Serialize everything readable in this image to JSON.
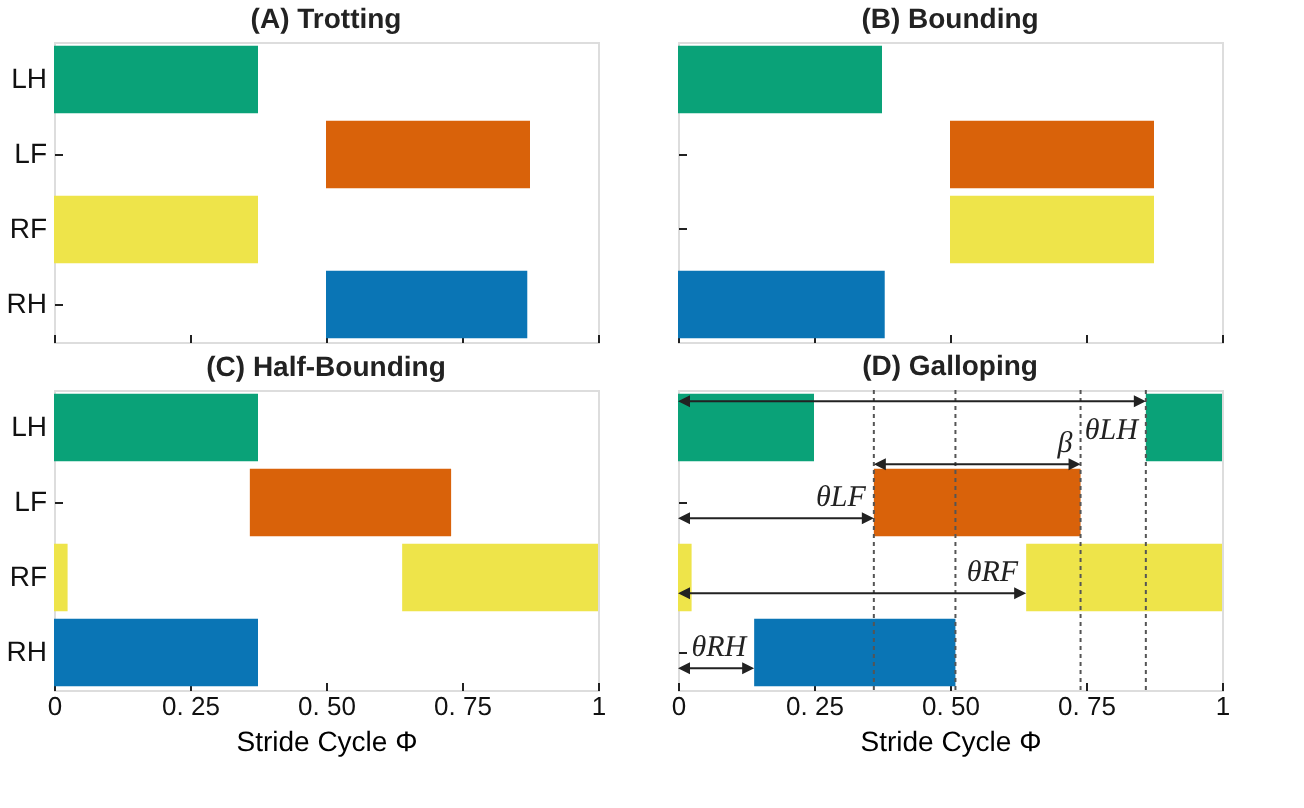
{
  "chart_data": [
    {
      "type": "bar",
      "title": "(A) Trotting",
      "orientation": "horizontal",
      "categories": [
        "LH",
        "LF",
        "RF",
        "RH"
      ],
      "xlim": [
        0,
        1
      ],
      "xticks": [
        0,
        {
          "value": 0.25,
          "label": "0. 25"
        },
        {
          "value": 0.5,
          "label": "0. 50"
        },
        {
          "value": 0.75,
          "label": "0. 75"
        },
        1
      ],
      "tick_labels": "y",
      "grid": false,
      "series": [
        {
          "values": [
            0.375,
            0.375,
            0.375,
            0.37
          ],
          "base": [
            0,
            0.5,
            0,
            0.5
          ],
          "colors": [
            "#0aa278",
            "#d9620a",
            "#eee44a",
            "#0a75b5"
          ]
        }
      ]
    },
    {
      "type": "bar",
      "title": "(B) Bounding",
      "orientation": "horizontal",
      "categories": [
        "LH",
        "LF",
        "RF",
        "RH"
      ],
      "xlim": [
        0,
        1
      ],
      "xticks": [
        0,
        {
          "value": 0.25,
          "label": "0. 25"
        },
        {
          "value": 0.5,
          "label": "0. 50"
        },
        {
          "value": 0.75,
          "label": "0. 75"
        },
        1
      ],
      "tick_labels": false,
      "grid": false,
      "series": [
        {
          "values": [
            0.375,
            0.375,
            0.375,
            0.38
          ],
          "base": [
            0,
            0.5,
            0.5,
            0
          ],
          "colors": [
            "#0aa278",
            "#d9620a",
            "#eee44a",
            "#0a75b5"
          ]
        }
      ]
    },
    {
      "type": "bar",
      "title": "(C) Half-Bounding",
      "xlabel": "Stride Cycle Φ",
      "orientation": "horizontal",
      "categories": [
        "LH",
        "LF",
        "RF",
        "RH"
      ],
      "xlim": [
        0,
        1
      ],
      "xticks": [
        0,
        {
          "value": 0.25,
          "label": "0. 25"
        },
        {
          "value": 0.5,
          "label": "0. 50"
        },
        {
          "value": 0.75,
          "label": "0. 75"
        },
        1
      ],
      "grid": false,
      "series": [
        {
          "values": [
            0.375,
            0.37,
            0.025,
            0.375
          ],
          "base": [
            0,
            0.36,
            0,
            0
          ],
          "colors": [
            "#0aa278",
            "#d9620a",
            "#eee44a",
            "#0a75b5"
          ]
        },
        {
          "values": [
            null,
            null,
            0.36,
            null
          ],
          "base": [
            null,
            null,
            0.64,
            null
          ],
          "colors": [
            "#0aa278",
            "#d9620a",
            "#eee44a",
            "#0a75b5"
          ]
        }
      ]
    },
    {
      "type": "bar",
      "title": "(D) Galloping",
      "xlabel": "Stride Cycle Φ",
      "orientation": "horizontal",
      "categories": [
        "LH",
        "LF",
        "RF",
        "RH"
      ],
      "xlim": [
        0,
        1
      ],
      "xticks": [
        0,
        {
          "value": 0.25,
          "label": "0. 25"
        },
        {
          "value": 0.5,
          "label": "0. 50"
        },
        {
          "value": 0.75,
          "label": "0. 75"
        },
        1
      ],
      "tick_labels": "x",
      "grid": false,
      "series": [
        {
          "values": [
            0.25,
            0.38,
            0.025,
            0.37
          ],
          "base": [
            0,
            0.36,
            0,
            0.14
          ],
          "colors": [
            "#0aa278",
            "#d9620a",
            "#eee44a",
            "#0a75b5"
          ]
        },
        {
          "values": [
            0.14,
            null,
            0.36,
            null
          ],
          "base": [
            0.86,
            null,
            0.64,
            null
          ],
          "colors": [
            "#0aa278",
            "#d9620a",
            "#eee44a",
            "#0a75b5"
          ]
        }
      ],
      "ref_lines": [
        {
          "axis": "x",
          "value": 0.36,
          "line_style": "dotted",
          "color": "#555555"
        },
        {
          "axis": "x",
          "value": 0.51,
          "line_style": "dotted",
          "color": "#555555"
        },
        {
          "axis": "x",
          "value": 0.74,
          "line_style": "dotted",
          "color": "#555555"
        },
        {
          "axis": "x",
          "value": 0.86,
          "line_style": "dotted",
          "color": "#555555"
        }
      ],
      "annotations": [
        {
          "text": "θLH",
          "x": 0.86,
          "y": "LH"
        },
        {
          "text": "β",
          "x": 0.74,
          "y": "LF"
        },
        {
          "text": "θLF",
          "x": 0.36,
          "y": "LF"
        },
        {
          "text": "θRF",
          "x": 0.64,
          "y": "RF"
        },
        {
          "text": "θRH",
          "x": 0.14,
          "y": "RH"
        }
      ]
    }
  ]
}
